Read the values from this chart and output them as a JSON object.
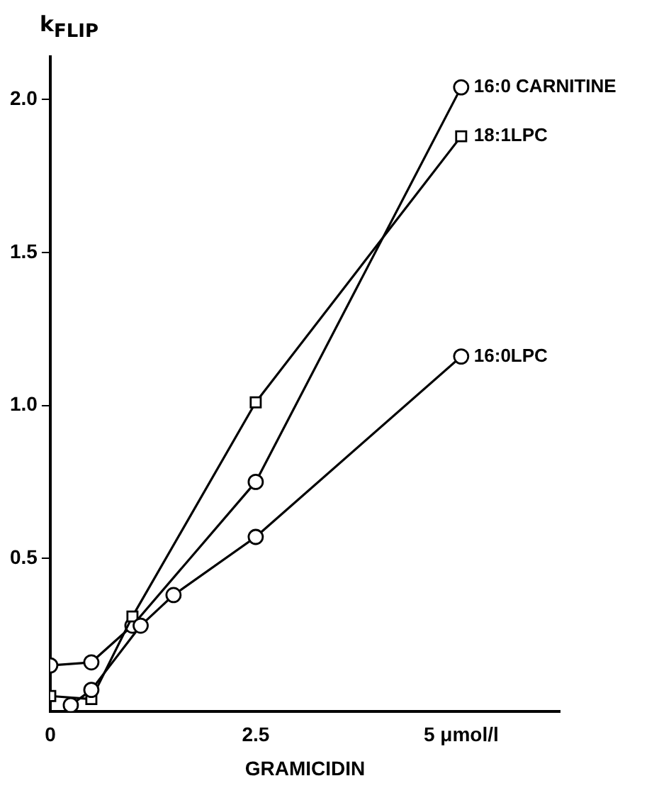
{
  "chart_data": {
    "type": "line",
    "xlabel": "GRAMICIDIN",
    "ylabel": "k$_{FLIP}$",
    "xlim": [
      0,
      6.2
    ],
    "xticks": [
      0,
      2.5,
      {
        "value": 5,
        "label": "5 μmol/l"
      }
    ],
    "ylim": [
      0,
      2.14
    ],
    "yticks": [
      {
        "value": 0.5,
        "label": "0.5"
      },
      {
        "value": 1,
        "label": "1.0"
      },
      {
        "value": 1.5,
        "label": "1.5"
      },
      {
        "value": 2,
        "label": "2.0"
      }
    ],
    "grid": false,
    "legend": false,
    "line_style": "solid",
    "series": [
      {
        "name": "16:0 CARNITINE",
        "color": "#000000",
        "marker": "circle",
        "x": [
          0,
          0.5,
          1,
          2.5,
          5
        ],
        "values": [
          0.15,
          0.16,
          0.28,
          0.75,
          2.04
        ]
      },
      {
        "name": "18:1LPC",
        "color": "#000000",
        "marker": "square",
        "x": [
          0,
          0.5,
          1,
          2.5,
          5
        ],
        "values": [
          0.05,
          0.04,
          0.31,
          1.01,
          1.88
        ]
      },
      {
        "name": "16:0LPC",
        "color": "#000000",
        "marker": "circle",
        "x": [
          0.25,
          0.5,
          1.1,
          1.5,
          2.5,
          5
        ],
        "values": [
          0.02,
          0.07,
          0.28,
          0.38,
          0.57,
          1.16
        ]
      }
    ]
  }
}
